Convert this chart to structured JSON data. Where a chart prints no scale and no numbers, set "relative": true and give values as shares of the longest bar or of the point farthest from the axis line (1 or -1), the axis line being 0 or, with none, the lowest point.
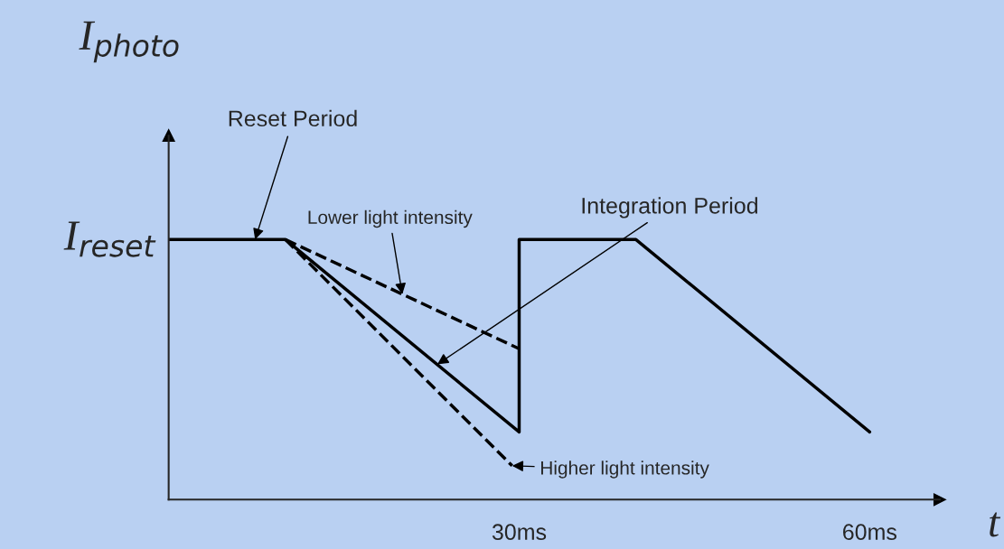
{
  "chart_data": {
    "type": "line",
    "relative": true,
    "ylabel": "I$_{photo}$",
    "xlabel": "t",
    "xlim": [
      0,
      66
    ],
    "xticks": [
      {
        "value": 30,
        "label": "30ms"
      },
      {
        "value": 60,
        "label": "60ms"
      }
    ],
    "series": [
      {
        "color": "#000000",
        "line_style": "solid",
        "x": [
          0,
          10,
          30,
          30,
          40,
          60
        ],
        "values": [
          1,
          1,
          0.26,
          1,
          1,
          0.26
        ]
      },
      {
        "color": "#000000",
        "line_style": "dashed",
        "x": [
          10,
          30
        ],
        "values": [
          1,
          0.58
        ]
      },
      {
        "color": "#000000",
        "line_style": "dashed",
        "x": [
          10,
          29.4
        ],
        "values": [
          1,
          0.13
        ]
      }
    ],
    "annotations": [
      {
        "text": "I$_{reset}$",
        "x": 0,
        "y": 1
      },
      {
        "text": "Reset Period",
        "x": 7.4,
        "y": 1
      },
      {
        "text": "Lower light intensity",
        "x": 20,
        "y": 0.79
      },
      {
        "text": "Integration Period",
        "x": 23,
        "y": 0.52
      },
      {
        "text": "Higher light intensity",
        "x": 29.4,
        "y": 0.13
      }
    ],
    "grid": false,
    "marker": "none"
  }
}
